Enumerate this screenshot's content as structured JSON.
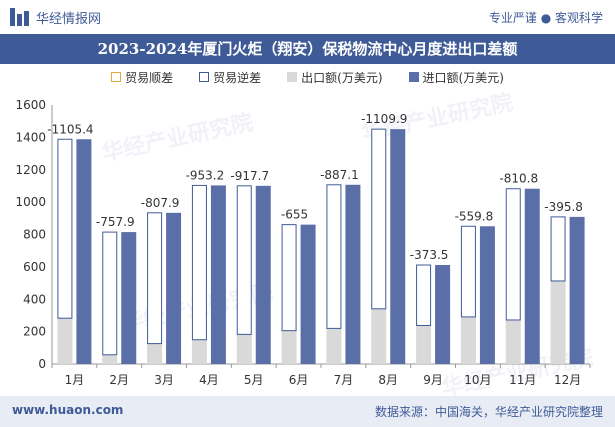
{
  "header": {
    "brand_name": "华经情报网",
    "tagline": "专业严谨 ● 客观科学",
    "title": "2023-2024年厦门火炬（翔安）保税物流中心月度进出口差额"
  },
  "footer": {
    "website": "www.huaon.com",
    "source": "数据来源：中国海关，华经产业研究院整理"
  },
  "watermark": "华经产业研究院",
  "colors": {
    "brand": "#3f5b97",
    "import_bar": "#5a6fa8",
    "export_bar": "#d9d9d9",
    "surplus_outline": "#e5a83a",
    "deficit_outline": "#3f5b97"
  },
  "chart_data": {
    "type": "bar",
    "categories": [
      "1月",
      "2月",
      "3月",
      "4月",
      "5月",
      "6月",
      "7月",
      "8月",
      "9月",
      "10月",
      "11月",
      "12月"
    ],
    "series": [
      {
        "name": "贸易顺差",
        "values": [
          0,
          0,
          0,
          0,
          0,
          0,
          0,
          0,
          0,
          0,
          0,
          0
        ]
      },
      {
        "name": "贸易逆差",
        "values": [
          -1105.4,
          -757.9,
          -807.9,
          -953.2,
          -917.7,
          -655,
          -887.1,
          -1109.9,
          -373.5,
          -559.8,
          -810.8,
          -395.8
        ]
      },
      {
        "name": "出口额(万美元)",
        "values": [
          283,
          57,
          126,
          150,
          183,
          206,
          220,
          341,
          238,
          291,
          272,
          513
        ]
      },
      {
        "name": "进口额(万美元)",
        "values": [
          1388.4,
          814.9,
          933.9,
          1103.2,
          1100.7,
          861,
          1107.1,
          1450.9,
          611.5,
          850.8,
          1082.8,
          908.8
        ]
      }
    ],
    "data_labels": [
      "-1105.4",
      "-757.9",
      "-807.9",
      "-953.2",
      "-917.7",
      "-655",
      "-887.1",
      "-1109.9",
      "-373.5",
      "-559.8",
      "-810.8",
      "-395.8"
    ],
    "ylim": [
      0,
      1600
    ],
    "yticks": [
      "0",
      "200",
      "400",
      "600",
      "800",
      "1000",
      "1200",
      "1400",
      "1600"
    ],
    "legend_position": "top-center",
    "grid": false
  }
}
